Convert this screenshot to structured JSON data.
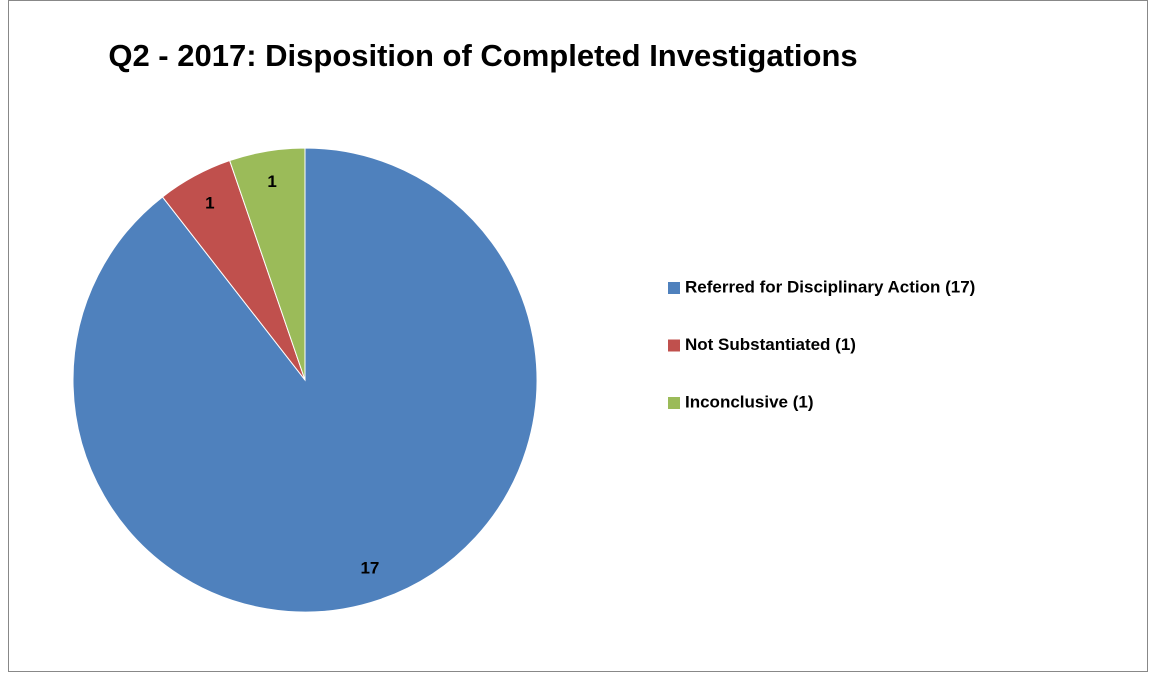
{
  "chart_data": {
    "type": "pie",
    "title": "Q2 - 2017: Disposition of Completed Investigations",
    "categories": [
      "Referred for Disciplinary Action (17)",
      "Not Substantiated (1)",
      "Inconclusive (1)"
    ],
    "values": [
      17,
      1,
      1
    ],
    "colors": [
      "#4f81bd",
      "#c0504d",
      "#9bbb59"
    ],
    "legend": "right"
  }
}
